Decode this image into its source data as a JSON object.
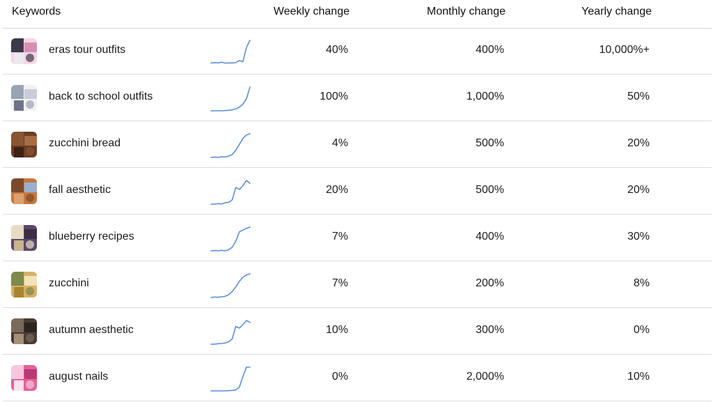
{
  "header": {
    "keywords": "Keywords",
    "weekly": "Weekly change",
    "monthly": "Monthly change",
    "yearly": "Yearly change"
  },
  "spark_color": "#5b8fd6",
  "rows": [
    {
      "keyword": "eras tour outfits",
      "weekly": "40%",
      "monthly": "400%",
      "yearly": "10,000%+",
      "trend": [
        0.05,
        0.06,
        0.05,
        0.08,
        0.04,
        0.05,
        0.05,
        0.06,
        0.15,
        0.1,
        0.7,
        1.0
      ],
      "thumb": [
        "#f4d6e4",
        "#3a3a4a",
        "#d98fb4",
        "#e9e9ef"
      ]
    },
    {
      "keyword": "back to school outfits",
      "weekly": "100%",
      "monthly": "1,000%",
      "yearly": "50%",
      "trend": [
        0.0,
        0.0,
        0.0,
        0.0,
        0.01,
        0.02,
        0.04,
        0.08,
        0.15,
        0.28,
        0.5,
        1.0
      ],
      "thumb": [
        "#f2f2f4",
        "#9aa2b6",
        "#c9cdd8",
        "#6d7388"
      ]
    },
    {
      "keyword": "zucchini bread",
      "weekly": "4%",
      "monthly": "500%",
      "yearly": "20%",
      "trend": [
        0.0,
        0.02,
        0.0,
        0.03,
        0.02,
        0.06,
        0.12,
        0.3,
        0.55,
        0.8,
        0.95,
        1.0
      ],
      "thumb": [
        "#6b3e24",
        "#8a5533",
        "#a66c42",
        "#3d2214"
      ]
    },
    {
      "keyword": "fall aesthetic",
      "weekly": "20%",
      "monthly": "500%",
      "yearly": "20%",
      "trend": [
        0.0,
        0.0,
        0.02,
        0.01,
        0.06,
        0.08,
        0.18,
        0.7,
        0.62,
        0.78,
        1.0,
        0.88
      ],
      "thumb": [
        "#c6783e",
        "#7a4a2a",
        "#9bb0d0",
        "#d9a070"
      ]
    },
    {
      "keyword": "blueberry recipes",
      "weekly": "7%",
      "monthly": "400%",
      "yearly": "30%",
      "trend": [
        0.0,
        0.01,
        0.0,
        0.02,
        0.0,
        0.05,
        0.15,
        0.4,
        0.8,
        0.88,
        0.95,
        1.0
      ],
      "thumb": [
        "#5a4a6a",
        "#e9dcc2",
        "#3a2e44",
        "#c9b48c"
      ]
    },
    {
      "keyword": "zucchini",
      "weekly": "7%",
      "monthly": "200%",
      "yearly": "8%",
      "trend": [
        0.0,
        0.02,
        0.01,
        0.03,
        0.05,
        0.12,
        0.25,
        0.45,
        0.68,
        0.85,
        0.95,
        1.0
      ],
      "thumb": [
        "#d7b068",
        "#7c8a4a",
        "#f2e3b6",
        "#a8842c"
      ]
    },
    {
      "keyword": "autumn aesthetic",
      "weekly": "10%",
      "monthly": "300%",
      "yearly": "0%",
      "trend": [
        0.0,
        0.0,
        0.02,
        0.03,
        0.05,
        0.1,
        0.22,
        0.75,
        0.68,
        0.82,
        1.0,
        0.92
      ],
      "thumb": [
        "#4a3c34",
        "#7a6a5a",
        "#2c241e",
        "#a59078"
      ]
    },
    {
      "keyword": "august nails",
      "weekly": "0%",
      "monthly": "2,000%",
      "yearly": "10%",
      "trend": [
        0.0,
        0.0,
        0.0,
        0.0,
        0.0,
        0.01,
        0.02,
        0.04,
        0.15,
        0.6,
        1.0,
        1.0
      ],
      "thumb": [
        "#e0639a",
        "#f7c6dc",
        "#b83a72",
        "#fbe3ee"
      ]
    }
  ]
}
